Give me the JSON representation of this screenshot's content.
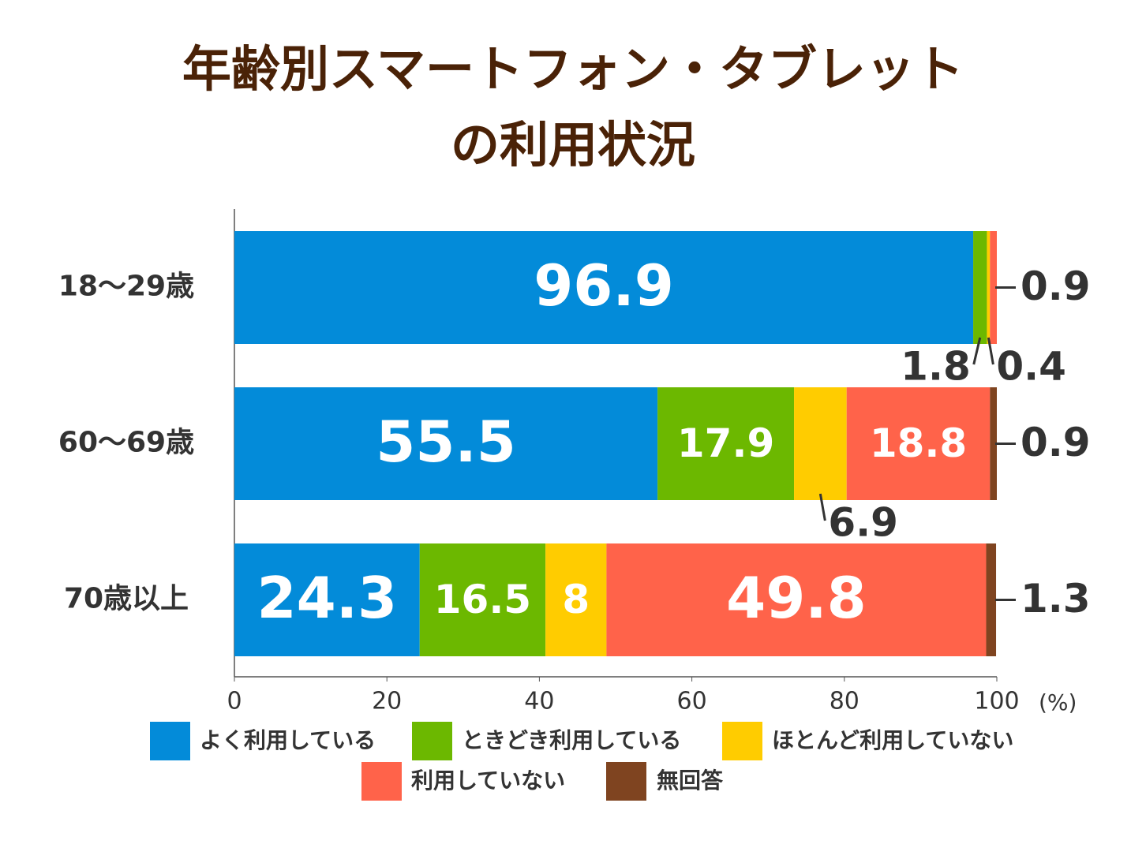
{
  "chart_data": {
    "type": "stacked-bar-horizontal",
    "title": [
      "年齢別スマートフォン・タブレット",
      "の利用状況"
    ],
    "categories": [
      "18〜29歳",
      "60〜69歳",
      "70歳以上"
    ],
    "series": [
      {
        "name": "よく利用している",
        "color": "#038bd9",
        "values": [
          96.9,
          55.5,
          24.3
        ]
      },
      {
        "name": "ときどき利用している",
        "color": "#6cb800",
        "values": [
          1.8,
          17.9,
          16.5
        ]
      },
      {
        "name": "ほとんど利用していない",
        "color": "#ffcc00",
        "values": [
          0.4,
          6.9,
          8
        ]
      },
      {
        "name": "利用していない",
        "color": "#ff634a",
        "values": [
          0.9,
          18.8,
          49.8
        ]
      },
      {
        "name": "無回答",
        "color": "#7f4420",
        "values": [
          null,
          0.9,
          1.3
        ]
      }
    ],
    "xlim": [
      0,
      100
    ],
    "xticks": [
      0,
      20,
      40,
      60,
      80,
      100
    ],
    "x_unit": "(%)"
  }
}
